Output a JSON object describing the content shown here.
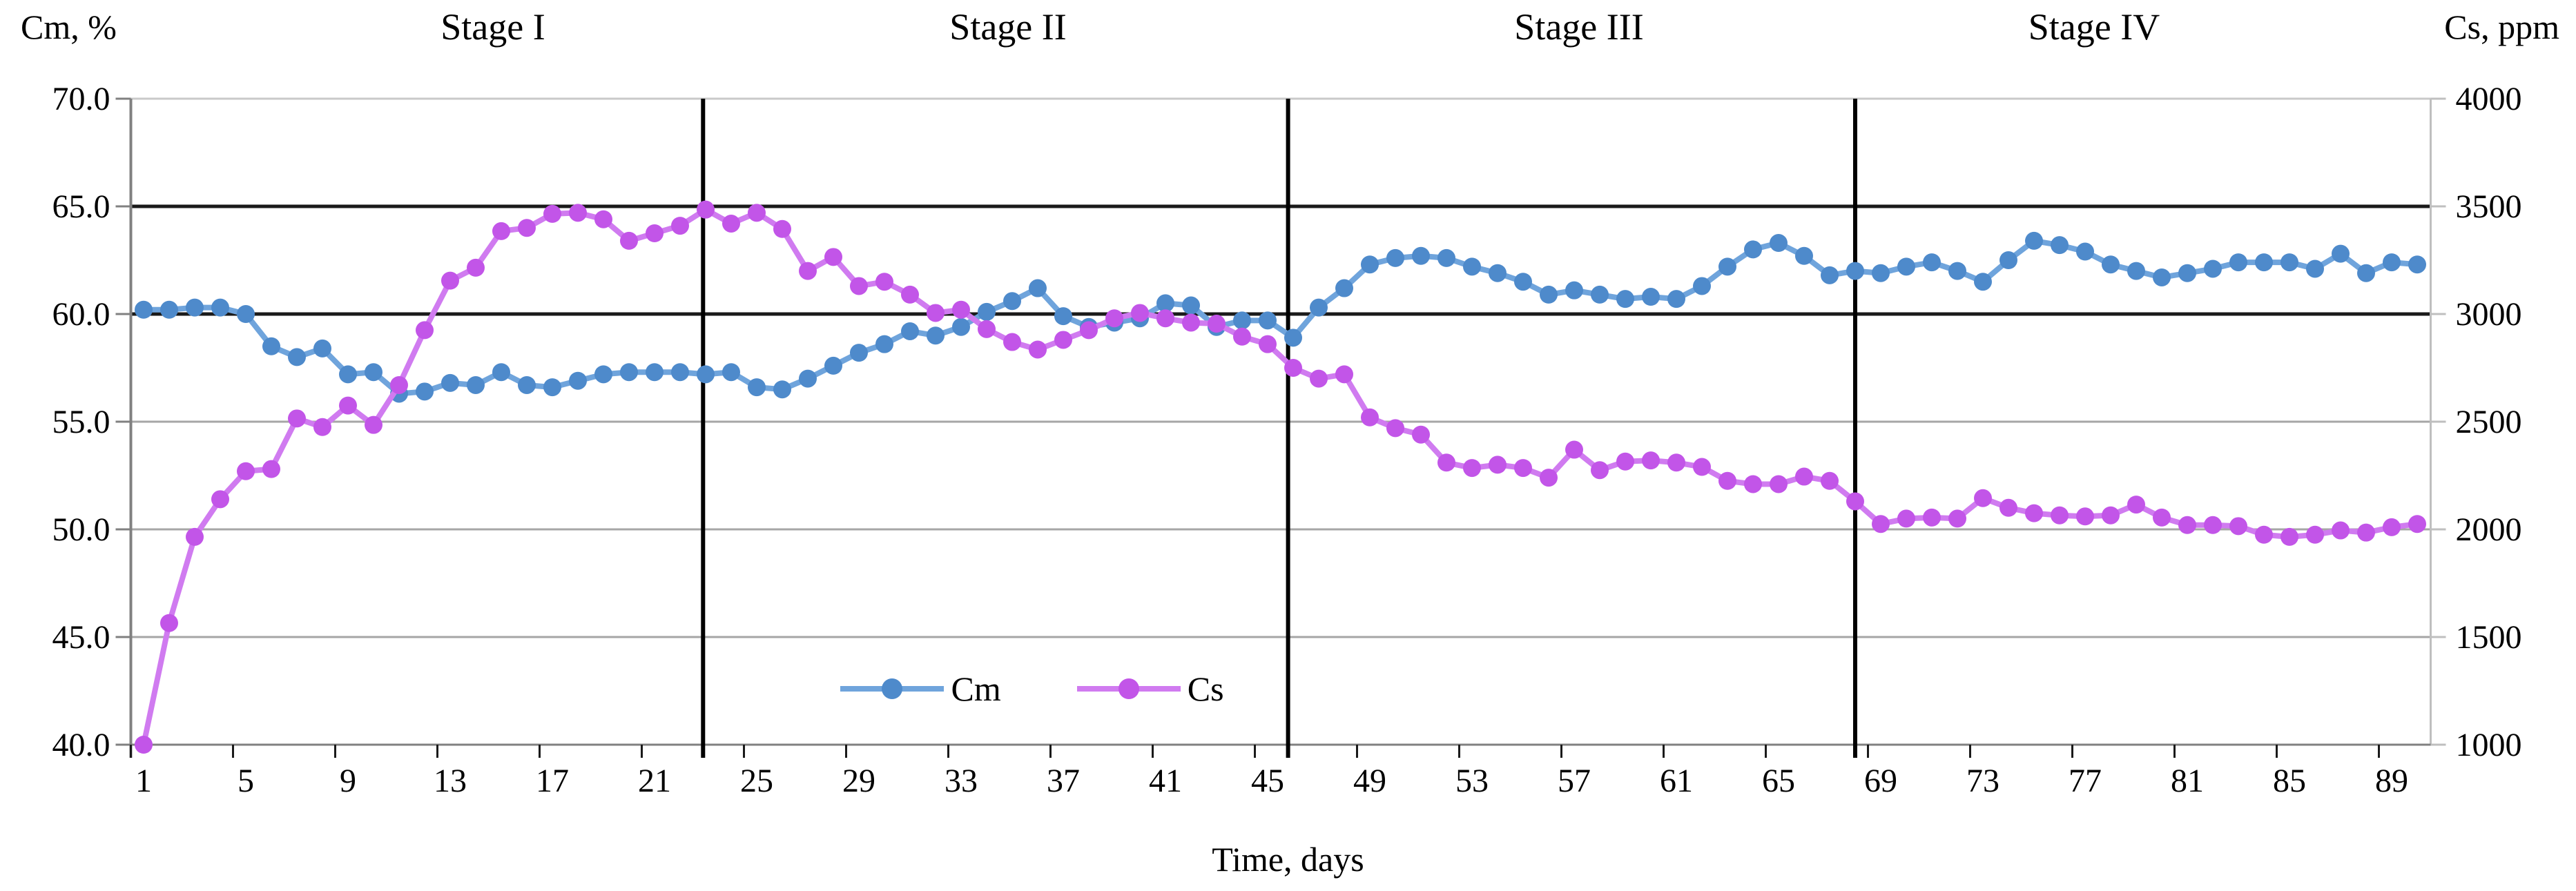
{
  "chart_data": {
    "type": "line",
    "title": "",
    "x_axis": {
      "label": "Time, days",
      "tick_labels": [
        1,
        5,
        9,
        13,
        17,
        21,
        25,
        29,
        33,
        37,
        41,
        45,
        49,
        53,
        57,
        61,
        65,
        69,
        73,
        77,
        81,
        85,
        89
      ],
      "range_days": [
        1,
        90
      ]
    },
    "left_axis": {
      "label": "Cm, %",
      "min": 40,
      "max": 70,
      "ticks": [
        {
          "value": 70,
          "label": "70.0",
          "dark_gridline": false
        },
        {
          "value": 65,
          "label": "65.0",
          "dark_gridline": true
        },
        {
          "value": 60,
          "label": "60.0",
          "dark_gridline": true
        },
        {
          "value": 55,
          "label": "55.0",
          "dark_gridline": false
        },
        {
          "value": 50,
          "label": "50.0",
          "dark_gridline": false
        },
        {
          "value": 45,
          "label": "45.0",
          "dark_gridline": false
        },
        {
          "value": 40,
          "label": "40.0",
          "dark_gridline": false
        }
      ]
    },
    "right_axis": {
      "label": "Cs, ppm",
      "min": 1000,
      "max": 4000,
      "ticks": [
        {
          "value": 4000,
          "label": "4000"
        },
        {
          "value": 3500,
          "label": "3500"
        },
        {
          "value": 3000,
          "label": "3000"
        },
        {
          "value": 2500,
          "label": "2500"
        },
        {
          "value": 2000,
          "label": "2000"
        },
        {
          "value": 1500,
          "label": "1500"
        },
        {
          "value": 1000,
          "label": "1000"
        }
      ]
    },
    "stages": [
      {
        "label": "Stage I"
      },
      {
        "label": "Stage II"
      },
      {
        "label": "Stage III"
      },
      {
        "label": "Stage IV"
      }
    ],
    "stage_divider_days": [
      22.9,
      45.8,
      68.0
    ],
    "legend": {
      "position": "inside-bottom-center",
      "entries": [
        "Cm",
        "Cs"
      ]
    },
    "days": [
      1,
      2,
      3,
      4,
      5,
      6,
      7,
      8,
      9,
      10,
      11,
      12,
      13,
      14,
      15,
      16,
      17,
      18,
      19,
      20,
      21,
      22,
      23,
      24,
      25,
      26,
      27,
      28,
      29,
      30,
      31,
      32,
      33,
      34,
      35,
      36,
      37,
      38,
      39,
      40,
      41,
      42,
      43,
      44,
      45,
      46,
      47,
      48,
      49,
      50,
      51,
      52,
      53,
      54,
      55,
      56,
      57,
      58,
      59,
      60,
      61,
      62,
      63,
      64,
      65,
      66,
      67,
      68,
      69,
      70,
      71,
      72,
      73,
      74,
      75,
      76,
      77,
      78,
      79,
      80,
      81,
      82,
      83,
      84,
      85,
      86,
      87,
      88,
      89,
      90
    ],
    "series": [
      {
        "name": "Cm",
        "axis": "left",
        "unit": "%",
        "line_color": "#6FA4DC",
        "marker_color": "#4E8ACB",
        "values": [
          60.2,
          60.2,
          60.3,
          60.3,
          60.0,
          58.5,
          58.0,
          58.4,
          57.2,
          57.3,
          56.3,
          56.4,
          56.8,
          56.7,
          57.3,
          56.7,
          56.6,
          56.9,
          57.2,
          57.3,
          57.3,
          57.3,
          57.2,
          57.3,
          56.6,
          56.5,
          57.0,
          57.6,
          58.2,
          58.6,
          59.2,
          59.0,
          59.4,
          60.1,
          60.6,
          61.2,
          59.9,
          59.4,
          59.6,
          59.8,
          60.5,
          60.4,
          59.4,
          59.7,
          59.7,
          58.9,
          60.3,
          61.2,
          62.3,
          62.6,
          62.7,
          62.6,
          62.2,
          61.9,
          61.5,
          60.9,
          61.1,
          60.9,
          60.7,
          60.8,
          60.7,
          61.3,
          62.2,
          63.0,
          63.3,
          62.7,
          61.8,
          62.0,
          61.9,
          62.2,
          62.4,
          62.0,
          61.5,
          62.5,
          63.4,
          63.2,
          62.9,
          62.3,
          62.0,
          61.7,
          61.9,
          62.1,
          62.4,
          62.4,
          62.4,
          62.1,
          62.8,
          61.9,
          62.4,
          62.3
        ]
      },
      {
        "name": "Cs",
        "axis": "right",
        "unit": "ppm",
        "line_color": "#D07BF0",
        "marker_color": "#C255E8",
        "values": [
          1000,
          1565,
          1965,
          2140,
          2270,
          2280,
          2515,
          2475,
          2575,
          2485,
          2670,
          2925,
          3155,
          3215,
          3385,
          3400,
          3465,
          3470,
          3440,
          3340,
          3375,
          3410,
          3485,
          3420,
          3470,
          3395,
          3200,
          3265,
          3130,
          3150,
          3090,
          3005,
          3020,
          2930,
          2870,
          2835,
          2880,
          2925,
          2980,
          3005,
          2980,
          2960,
          2955,
          2895,
          2860,
          2750,
          2700,
          2720,
          2520,
          2470,
          2440,
          2310,
          2285,
          2300,
          2285,
          2240,
          2370,
          2275,
          2315,
          2320,
          2310,
          2290,
          2225,
          2210,
          2210,
          2245,
          2225,
          2130,
          2025,
          2050,
          2055,
          2050,
          2145,
          2100,
          2075,
          2065,
          2060,
          2065,
          2115,
          2055,
          2020,
          2020,
          2015,
          1975,
          1965,
          1975,
          1995,
          1985,
          2010,
          2025
        ]
      }
    ]
  }
}
